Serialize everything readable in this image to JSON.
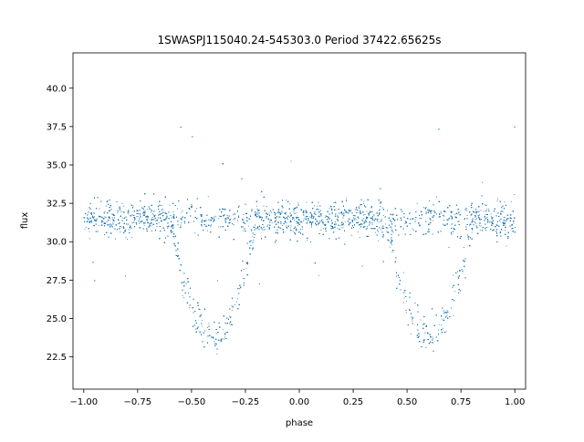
{
  "chart_data": {
    "type": "scatter",
    "title": "1SWASPJ115040.24-545303.0 Period 37422.65625s",
    "xlabel": "phase",
    "ylabel": "flux",
    "xlim": [
      -1.05,
      1.05
    ],
    "ylim": [
      20.4,
      42.3
    ],
    "x_ticks": [
      -1.0,
      -0.75,
      -0.5,
      -0.25,
      0.0,
      0.25,
      0.5,
      0.75,
      1.0
    ],
    "x_tick_labels": [
      "−1.00",
      "−0.75",
      "−0.50",
      "−0.25",
      "0.00",
      "0.25",
      "0.50",
      "0.75",
      "1.00"
    ],
    "y_ticks": [
      22.5,
      25.0,
      27.5,
      30.0,
      32.5,
      35.0,
      37.5,
      40.0
    ],
    "y_tick_labels": [
      "22.5",
      "25.0",
      "27.5",
      "30.0",
      "32.5",
      "35.0",
      "37.5",
      "40.0"
    ],
    "grid": false,
    "marker_color": "#1f77b4",
    "series": [
      {
        "x_range": [
          -1.0,
          1.0
        ],
        "baseline_flux": 31.5,
        "baseline_spread": 0.8,
        "dip_centers": [
          -0.4,
          0.6
        ],
        "dip_min_flux": 24.0,
        "approx_points": 12000
      }
    ]
  }
}
